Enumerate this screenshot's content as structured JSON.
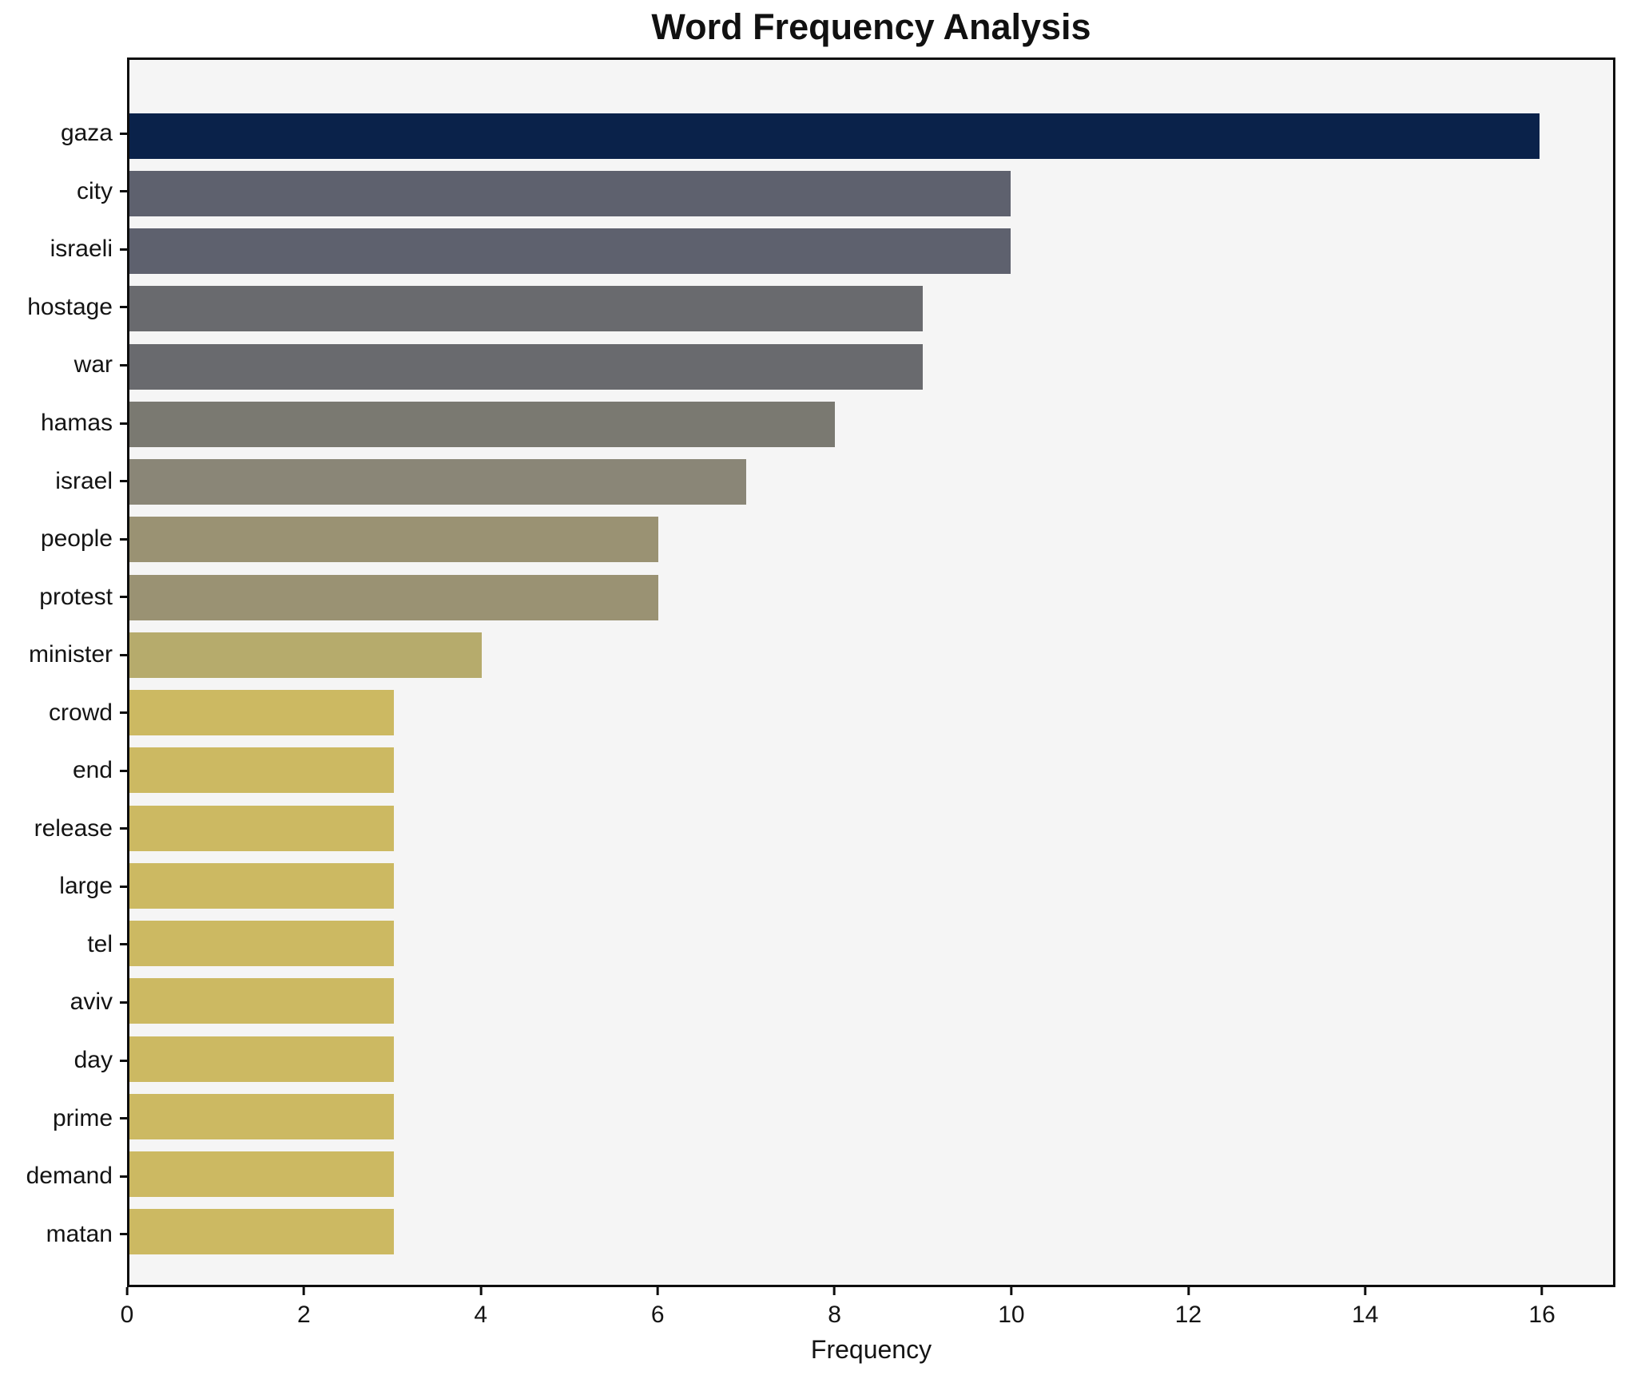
{
  "chart_data": {
    "type": "bar",
    "orientation": "horizontal",
    "title": "Word Frequency Analysis",
    "xlabel": "Frequency",
    "ylabel": "",
    "xlim": [
      0,
      16.83
    ],
    "x_ticks": [
      0,
      2,
      4,
      6,
      8,
      10,
      12,
      14,
      16
    ],
    "grid": false,
    "legend": false,
    "categories": [
      "gaza",
      "city",
      "israeli",
      "hostage",
      "war",
      "hamas",
      "israel",
      "people",
      "protest",
      "minister",
      "crowd",
      "end",
      "release",
      "large",
      "tel",
      "aviv",
      "day",
      "prime",
      "demand",
      "matan"
    ],
    "values": [
      16,
      10,
      10,
      9,
      9,
      8,
      7,
      6,
      6,
      4,
      3,
      3,
      3,
      3,
      3,
      3,
      3,
      3,
      3,
      3
    ],
    "bar_colors": [
      "#0a224a",
      "#5e616e",
      "#5e616e",
      "#696a6e",
      "#696a6e",
      "#7a7971",
      "#8a8677",
      "#9a9273",
      "#9a9273",
      "#b6ab6c",
      "#ccb962",
      "#ccb962",
      "#ccb962",
      "#ccb962",
      "#ccb962",
      "#ccb962",
      "#ccb962",
      "#ccb962",
      "#ccb962",
      "#ccb962"
    ]
  },
  "colors": {
    "figure_bg": "#ffffff",
    "plot_bg": "#f5f5f5",
    "spine": "#0d0d0d",
    "text": "#141414"
  }
}
